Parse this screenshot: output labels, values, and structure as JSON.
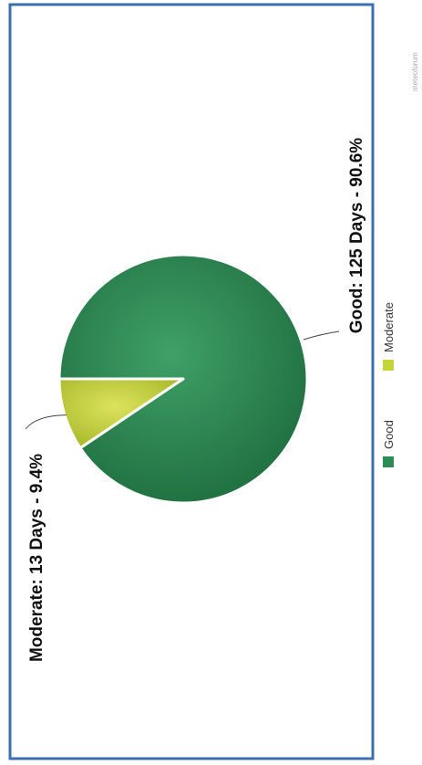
{
  "chart_data": {
    "type": "pie",
    "title": "",
    "categories": [
      "Good",
      "Moderate"
    ],
    "slices": [
      {
        "name": "Good",
        "days": 125,
        "percent": 90.6,
        "label": "Good: 125 Days - 90.6%",
        "color": "#2e8b57"
      },
      {
        "name": "Moderate",
        "days": 13,
        "percent": 9.4,
        "label": "Moderate: 13 Days - 9.4%",
        "color": "#c6d43a"
      }
    ],
    "legend": {
      "placement": "bottom",
      "items": [
        {
          "label": "Good",
          "color": "#2e8b57"
        },
        {
          "label": "Moderate",
          "color": "#c6d43a"
        }
      ]
    },
    "credit": "meteoforum"
  },
  "colors": {
    "frame_border": "#3a6fb3",
    "good_light": "#3fa066",
    "good_dark": "#1f6e3f",
    "moderate_light": "#dbe35c",
    "moderate_dark": "#a9b82a"
  }
}
